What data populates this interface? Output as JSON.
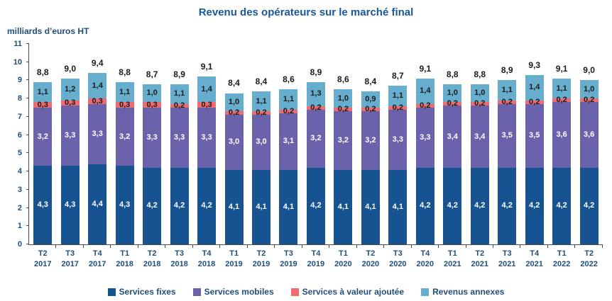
{
  "title": "Revenu des opérateurs sur le marché final",
  "chart_data": {
    "type": "bar",
    "stacked": true,
    "title": "Revenu des opérateurs sur le marché final",
    "ylabel": "milliards d’euros HT",
    "ylim": [
      0,
      11
    ],
    "y_ticks": [
      0,
      1,
      2,
      3,
      4,
      5,
      6,
      7,
      8,
      9,
      10,
      11
    ],
    "grid": false,
    "legend_position": "bottom",
    "categories": [
      [
        "T2",
        "2017"
      ],
      [
        "T3",
        "2017"
      ],
      [
        "T4",
        "2017"
      ],
      [
        "T1",
        "2018"
      ],
      [
        "T2",
        "2018"
      ],
      [
        "T3",
        "2018"
      ],
      [
        "T4",
        "2018"
      ],
      [
        "T1",
        "2019"
      ],
      [
        "T2",
        "2019"
      ],
      [
        "T3",
        "2019"
      ],
      [
        "T4",
        "2019"
      ],
      [
        "T1",
        "2020"
      ],
      [
        "T2",
        "2020"
      ],
      [
        "T3",
        "2020"
      ],
      [
        "T4",
        "2020"
      ],
      [
        "T1",
        "2021"
      ],
      [
        "T2",
        "2021"
      ],
      [
        "T3",
        "2021"
      ],
      [
        "T4",
        "2021"
      ],
      [
        "T1",
        "2022"
      ],
      [
        "T2",
        "2022"
      ]
    ],
    "series": [
      {
        "name": "Services fixes",
        "color": "#175390",
        "label_color": "#ffffff",
        "values": [
          4.3,
          4.3,
          4.4,
          4.3,
          4.2,
          4.2,
          4.2,
          4.1,
          4.1,
          4.1,
          4.2,
          4.1,
          4.1,
          4.1,
          4.2,
          4.2,
          4.2,
          4.2,
          4.2,
          4.2,
          4.2
        ]
      },
      {
        "name": "Services mobiles",
        "color": "#6A62AA",
        "label_color": "#ffffff",
        "values": [
          3.2,
          3.3,
          3.3,
          3.2,
          3.3,
          3.3,
          3.3,
          3.0,
          3.0,
          3.1,
          3.2,
          3.2,
          3.2,
          3.3,
          3.3,
          3.4,
          3.4,
          3.5,
          3.5,
          3.6,
          3.6
        ]
      },
      {
        "name": "Services à valeur ajoutée",
        "color": "#EF6B6F",
        "label_color": "#1a1a1a",
        "values": [
          0.3,
          0.3,
          0.3,
          0.3,
          0.3,
          0.2,
          0.3,
          0.2,
          0.2,
          0.2,
          0.2,
          0.2,
          0.2,
          0.2,
          0.2,
          0.2,
          0.2,
          0.2,
          0.2,
          0.2,
          0.2
        ]
      },
      {
        "name": "Revenus annexes",
        "color": "#67AECE",
        "label_color": "#1a1a1a",
        "values": [
          1.1,
          1.2,
          1.4,
          1.1,
          1.0,
          1.1,
          1.4,
          1.0,
          1.1,
          1.1,
          1.3,
          1.0,
          0.9,
          1.1,
          1.4,
          1.0,
          1.0,
          1.1,
          1.4,
          1.1,
          1.0
        ]
      }
    ],
    "totals": [
      8.8,
      9.0,
      9.4,
      8.8,
      8.7,
      8.9,
      9.1,
      8.4,
      8.4,
      8.6,
      8.9,
      8.6,
      8.4,
      8.7,
      9.1,
      8.8,
      8.8,
      8.9,
      9.3,
      9.1,
      9.0
    ]
  }
}
